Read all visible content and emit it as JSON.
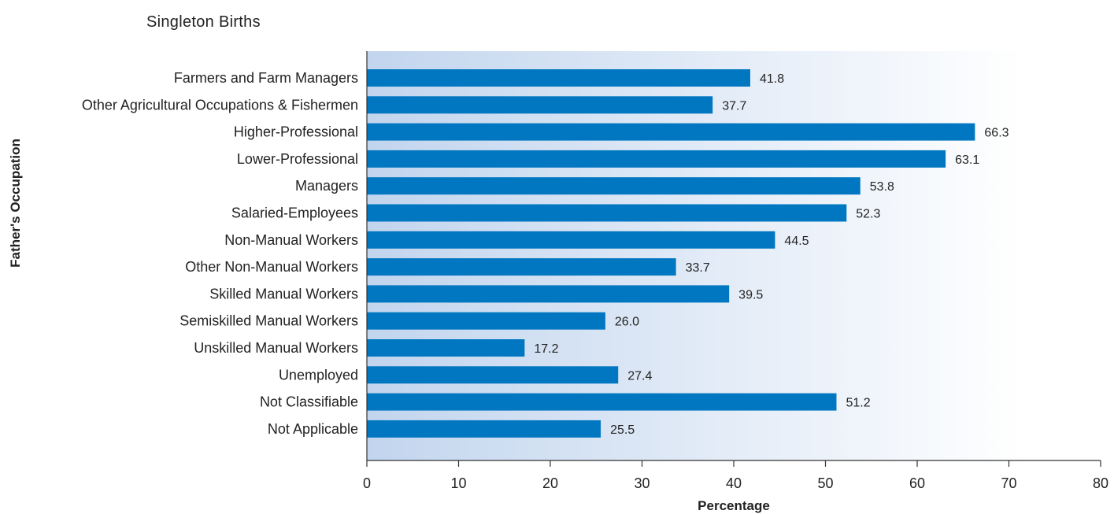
{
  "chart_data": {
    "type": "bar",
    "orientation": "horizontal",
    "title": "Singleton Births",
    "xlabel": "Percentage",
    "ylabel": "Father's Occupation",
    "categories": [
      "Farmers and Farm Managers",
      "Other Agricultural Occupations & Fishermen",
      "Higher-Professional",
      "Lower-Professional",
      "Managers",
      "Salaried-Employees",
      "Non-Manual Workers",
      "Other Non-Manual Workers",
      "Skilled Manual Workers",
      "Semiskilled Manual Workers",
      "Unskilled Manual Workers",
      "Unemployed",
      "Not Classifiable",
      "Not Applicable"
    ],
    "values": [
      41.8,
      37.7,
      66.3,
      63.1,
      53.8,
      52.3,
      44.5,
      33.7,
      39.5,
      26.0,
      17.2,
      27.4,
      51.2,
      25.5
    ],
    "value_labels": [
      "41.8",
      "37.7",
      "66.3",
      "63.1",
      "53.8",
      "52.3",
      "44.5",
      "33.7",
      "39.5",
      "26.0",
      "17.2",
      "27.4",
      "51.2",
      "25.5"
    ],
    "xlim": [
      0,
      80
    ],
    "xticks": [
      "0",
      "10",
      "20",
      "30",
      "40",
      "50",
      "60",
      "70",
      "80"
    ],
    "grid": false,
    "legend": "none",
    "colors": {
      "bar": "#0077c0",
      "background_gradient_start": "#c2d5ee",
      "background_gradient_end": "#ffffff",
      "axis": "#333333"
    }
  }
}
